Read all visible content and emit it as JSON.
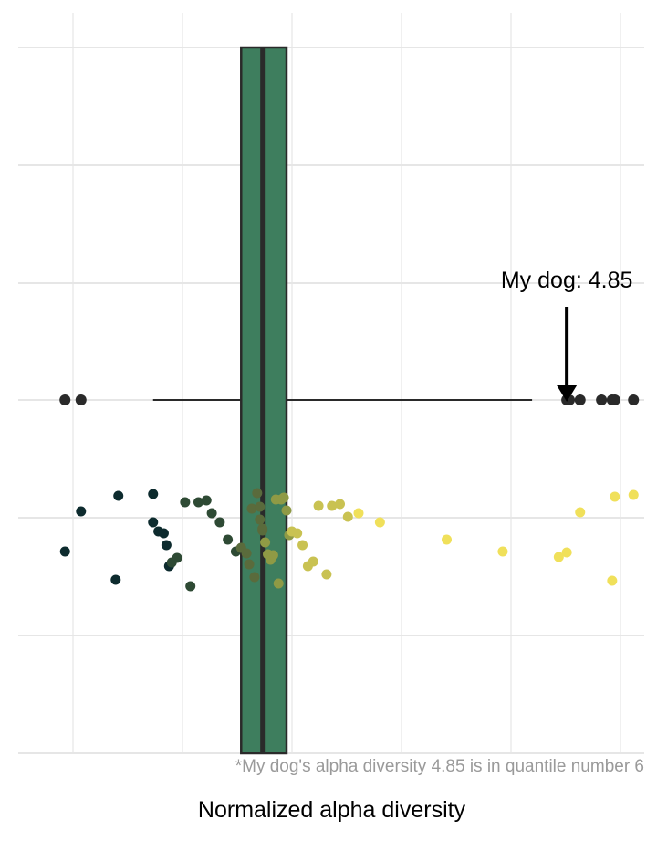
{
  "chart_data": {
    "type": "box",
    "title": "",
    "xlabel": "Normalized alpha diversity",
    "ylabel": "",
    "grid": true,
    "legend": "none",
    "box": {
      "q1": 3.63,
      "median": 3.71,
      "q3": 3.8,
      "whisker_low": 3.3,
      "whisker_high": 4.72
    },
    "box_color": "#3e7e5e",
    "box_outliers": [
      2.97,
      3.03,
      4.85,
      4.86,
      4.9,
      4.98,
      5.02,
      5.03,
      5.1
    ],
    "highlight": {
      "value": 4.85,
      "label": "My dog: 4.85"
    },
    "jitter_colors": [
      "#0d2b2e",
      "#2e4a34",
      "#5a6b3c",
      "#8f9a45",
      "#c9c252",
      "#f0e05a"
    ],
    "samples": [
      {
        "x": 2.97,
        "q": 1
      },
      {
        "x": 3.03,
        "q": 1
      },
      {
        "x": 3.16,
        "q": 1
      },
      {
        "x": 3.17,
        "q": 1
      },
      {
        "x": 3.3,
        "q": 1
      },
      {
        "x": 3.3,
        "q": 1
      },
      {
        "x": 3.32,
        "q": 1
      },
      {
        "x": 3.34,
        "q": 1
      },
      {
        "x": 3.35,
        "q": 1
      },
      {
        "x": 3.36,
        "q": 1
      },
      {
        "x": 3.37,
        "q": 2
      },
      {
        "x": 3.39,
        "q": 2
      },
      {
        "x": 3.42,
        "q": 2
      },
      {
        "x": 3.44,
        "q": 2
      },
      {
        "x": 3.47,
        "q": 2
      },
      {
        "x": 3.5,
        "q": 2
      },
      {
        "x": 3.52,
        "q": 2
      },
      {
        "x": 3.55,
        "q": 2
      },
      {
        "x": 3.58,
        "q": 2
      },
      {
        "x": 3.61,
        "q": 2
      },
      {
        "x": 3.63,
        "q": 3
      },
      {
        "x": 3.65,
        "q": 3
      },
      {
        "x": 3.66,
        "q": 3
      },
      {
        "x": 3.67,
        "q": 3
      },
      {
        "x": 3.68,
        "q": 3
      },
      {
        "x": 3.69,
        "q": 3
      },
      {
        "x": 3.7,
        "q": 3
      },
      {
        "x": 3.7,
        "q": 3
      },
      {
        "x": 3.71,
        "q": 3
      },
      {
        "x": 3.71,
        "q": 3
      },
      {
        "x": 3.72,
        "q": 4
      },
      {
        "x": 3.73,
        "q": 4
      },
      {
        "x": 3.74,
        "q": 4
      },
      {
        "x": 3.75,
        "q": 4
      },
      {
        "x": 3.76,
        "q": 4
      },
      {
        "x": 3.77,
        "q": 4
      },
      {
        "x": 3.78,
        "q": 4
      },
      {
        "x": 3.79,
        "q": 4
      },
      {
        "x": 3.8,
        "q": 4
      },
      {
        "x": 3.81,
        "q": 4
      },
      {
        "x": 3.82,
        "q": 5
      },
      {
        "x": 3.84,
        "q": 5
      },
      {
        "x": 3.86,
        "q": 5
      },
      {
        "x": 3.88,
        "q": 5
      },
      {
        "x": 3.9,
        "q": 5
      },
      {
        "x": 3.92,
        "q": 5
      },
      {
        "x": 3.95,
        "q": 5
      },
      {
        "x": 3.97,
        "q": 5
      },
      {
        "x": 4.0,
        "q": 5
      },
      {
        "x": 4.03,
        "q": 5
      },
      {
        "x": 4.07,
        "q": 6
      },
      {
        "x": 4.15,
        "q": 6
      },
      {
        "x": 4.4,
        "q": 6
      },
      {
        "x": 4.61,
        "q": 6
      },
      {
        "x": 4.82,
        "q": 6
      },
      {
        "x": 4.85,
        "q": 6
      },
      {
        "x": 4.9,
        "q": 6
      },
      {
        "x": 5.02,
        "q": 6
      },
      {
        "x": 5.03,
        "q": 6
      },
      {
        "x": 5.1,
        "q": 6
      }
    ],
    "caption": "*My dog's alpha diversity 4.85 is in quantile number 6"
  }
}
